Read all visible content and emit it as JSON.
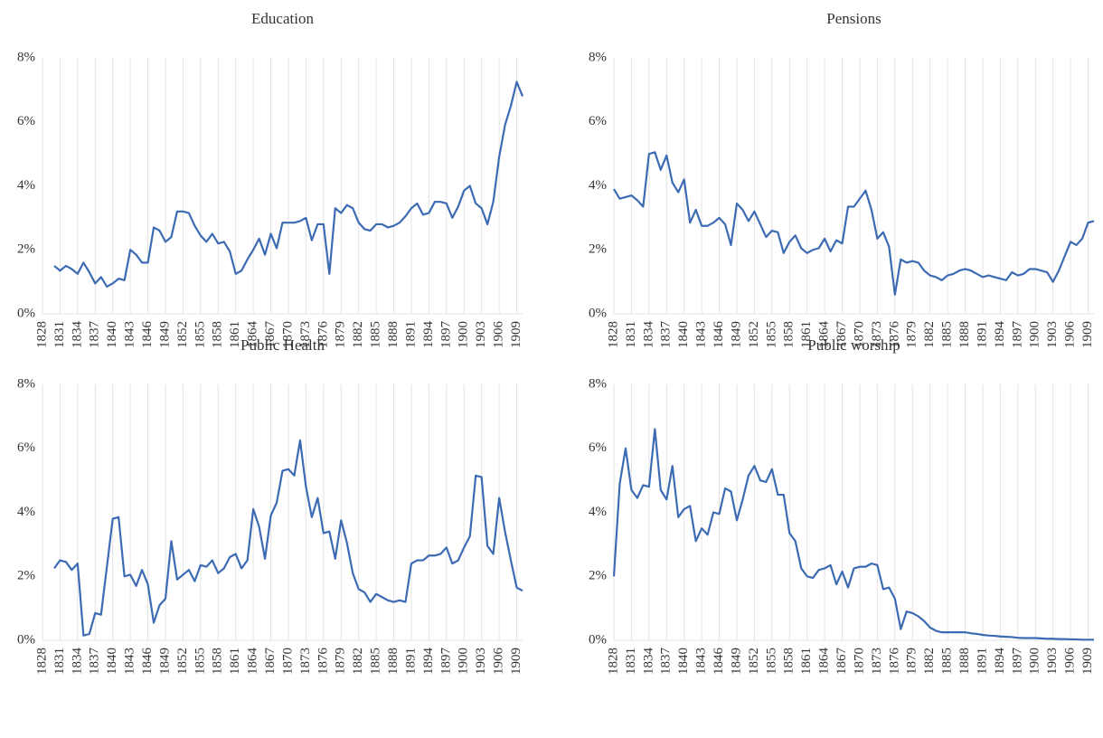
{
  "chart_data": [
    {
      "type": "line",
      "title": "Education",
      "color": "#3d6bb3",
      "grid": true,
      "x": [
        1828,
        1829,
        1830,
        1831,
        1832,
        1833,
        1834,
        1835,
        1836,
        1837,
        1838,
        1839,
        1840,
        1841,
        1842,
        1843,
        1844,
        1845,
        1846,
        1847,
        1848,
        1849,
        1850,
        1851,
        1852,
        1853,
        1854,
        1855,
        1856,
        1857,
        1858,
        1859,
        1860,
        1861,
        1862,
        1863,
        1864,
        1865,
        1866,
        1867,
        1868,
        1869,
        1870,
        1871,
        1872,
        1873,
        1874,
        1875,
        1876,
        1877,
        1878,
        1879,
        1880,
        1881,
        1882,
        1883,
        1884,
        1885,
        1886,
        1887,
        1888,
        1889,
        1890,
        1891,
        1892,
        1893,
        1894,
        1895,
        1896,
        1897,
        1898,
        1899,
        1900,
        1901,
        1902,
        1903,
        1904,
        1905,
        1906,
        1907,
        1908,
        1909,
        1910
      ],
      "values": [
        null,
        null,
        1.5,
        1.35,
        1.5,
        1.4,
        1.25,
        1.6,
        1.3,
        0.95,
        1.15,
        0.85,
        0.95,
        1.1,
        1.05,
        2.0,
        1.85,
        1.6,
        1.6,
        2.7,
        2.6,
        2.25,
        2.4,
        3.2,
        3.2,
        3.15,
        2.75,
        2.45,
        2.25,
        2.5,
        2.2,
        2.25,
        1.95,
        1.25,
        1.35,
        1.7,
        2.0,
        2.35,
        1.85,
        2.5,
        2.05,
        2.85,
        2.85,
        2.85,
        2.9,
        3.0,
        2.3,
        2.8,
        2.8,
        1.25,
        3.3,
        3.15,
        3.4,
        3.3,
        2.85,
        2.65,
        2.6,
        2.8,
        2.8,
        2.7,
        2.75,
        2.85,
        3.05,
        3.3,
        3.45,
        3.1,
        3.15,
        3.5,
        3.5,
        3.45,
        3.0,
        3.35,
        3.85,
        4.0,
        3.45,
        3.3,
        2.8,
        3.5,
        4.9,
        5.9,
        6.5,
        7.25,
        6.8
      ],
      "xlim": [
        1828,
        1910
      ],
      "xticks": [
        1828,
        1831,
        1834,
        1837,
        1840,
        1843,
        1846,
        1849,
        1852,
        1855,
        1858,
        1861,
        1864,
        1867,
        1870,
        1873,
        1876,
        1879,
        1882,
        1885,
        1888,
        1891,
        1894,
        1897,
        1900,
        1903,
        1906,
        1909
      ],
      "ylim": [
        0,
        8
      ],
      "yticks": [
        {
          "value": 0,
          "label": "0%"
        },
        {
          "value": 2,
          "label": "2%"
        },
        {
          "value": 4,
          "label": "4%"
        },
        {
          "value": 6,
          "label": "6%"
        },
        {
          "value": 8,
          "label": "8%"
        }
      ]
    },
    {
      "type": "line",
      "title": "Pensions",
      "color": "#3d6bb3",
      "grid": true,
      "x": [
        1828,
        1829,
        1830,
        1831,
        1832,
        1833,
        1834,
        1835,
        1836,
        1837,
        1838,
        1839,
        1840,
        1841,
        1842,
        1843,
        1844,
        1845,
        1846,
        1847,
        1848,
        1849,
        1850,
        1851,
        1852,
        1853,
        1854,
        1855,
        1856,
        1857,
        1858,
        1859,
        1860,
        1861,
        1862,
        1863,
        1864,
        1865,
        1866,
        1867,
        1868,
        1869,
        1870,
        1871,
        1872,
        1873,
        1874,
        1875,
        1876,
        1877,
        1878,
        1879,
        1880,
        1881,
        1882,
        1883,
        1884,
        1885,
        1886,
        1887,
        1888,
        1889,
        1890,
        1891,
        1892,
        1893,
        1894,
        1895,
        1896,
        1897,
        1898,
        1899,
        1900,
        1901,
        1902,
        1903,
        1904,
        1905,
        1906,
        1907,
        1908,
        1909,
        1910
      ],
      "values": [
        3.9,
        3.6,
        3.65,
        3.7,
        3.55,
        3.35,
        5.0,
        5.05,
        4.5,
        4.95,
        4.1,
        3.8,
        4.2,
        2.85,
        3.25,
        2.75,
        2.75,
        2.85,
        3.0,
        2.8,
        2.15,
        3.45,
        3.25,
        2.9,
        3.2,
        2.8,
        2.4,
        2.6,
        2.55,
        1.9,
        2.25,
        2.45,
        2.05,
        1.9,
        2.0,
        2.05,
        2.35,
        1.95,
        2.3,
        2.2,
        3.35,
        3.35,
        3.6,
        3.85,
        3.25,
        2.35,
        2.55,
        2.1,
        0.6,
        1.7,
        1.6,
        1.65,
        1.6,
        1.35,
        1.2,
        1.15,
        1.05,
        1.2,
        1.25,
        1.35,
        1.4,
        1.35,
        1.25,
        1.15,
        1.2,
        1.15,
        1.1,
        1.05,
        1.3,
        1.2,
        1.25,
        1.4,
        1.4,
        1.35,
        1.3,
        1.0,
        1.35,
        1.8,
        2.25,
        2.15,
        2.35,
        2.85,
        2.9
      ],
      "xlim": [
        1828,
        1910
      ],
      "xticks": [
        1828,
        1831,
        1834,
        1837,
        1840,
        1843,
        1846,
        1849,
        1852,
        1855,
        1858,
        1861,
        1864,
        1867,
        1870,
        1873,
        1876,
        1879,
        1882,
        1885,
        1888,
        1891,
        1894,
        1897,
        1900,
        1903,
        1906,
        1909
      ],
      "ylim": [
        0,
        8
      ],
      "yticks": [
        {
          "value": 0,
          "label": "0%"
        },
        {
          "value": 2,
          "label": "2%"
        },
        {
          "value": 4,
          "label": "4%"
        },
        {
          "value": 6,
          "label": "6%"
        },
        {
          "value": 8,
          "label": "8%"
        }
      ]
    },
    {
      "type": "line",
      "title": "Public Health",
      "color": "#3d6bb3",
      "grid": true,
      "x": [
        1828,
        1829,
        1830,
        1831,
        1832,
        1833,
        1834,
        1835,
        1836,
        1837,
        1838,
        1839,
        1840,
        1841,
        1842,
        1843,
        1844,
        1845,
        1846,
        1847,
        1848,
        1849,
        1850,
        1851,
        1852,
        1853,
        1854,
        1855,
        1856,
        1857,
        1858,
        1859,
        1860,
        1861,
        1862,
        1863,
        1864,
        1865,
        1866,
        1867,
        1868,
        1869,
        1870,
        1871,
        1872,
        1873,
        1874,
        1875,
        1876,
        1877,
        1878,
        1879,
        1880,
        1881,
        1882,
        1883,
        1884,
        1885,
        1886,
        1887,
        1888,
        1889,
        1890,
        1891,
        1892,
        1893,
        1894,
        1895,
        1896,
        1897,
        1898,
        1899,
        1900,
        1901,
        1902,
        1903,
        1904,
        1905,
        1906,
        1907,
        1908,
        1909,
        1910
      ],
      "values": [
        null,
        null,
        2.25,
        2.5,
        2.45,
        2.2,
        2.4,
        0.15,
        0.2,
        0.85,
        0.8,
        2.3,
        3.8,
        3.85,
        2.0,
        2.05,
        1.7,
        2.2,
        1.75,
        0.55,
        1.1,
        1.3,
        3.1,
        1.9,
        2.05,
        2.2,
        1.85,
        2.35,
        2.3,
        2.5,
        2.1,
        2.25,
        2.6,
        2.7,
        2.25,
        2.5,
        4.1,
        3.55,
        2.55,
        3.9,
        4.3,
        5.3,
        5.35,
        5.15,
        6.25,
        4.8,
        3.85,
        4.45,
        3.35,
        3.4,
        2.55,
        3.75,
        3.05,
        2.1,
        1.6,
        1.5,
        1.2,
        1.45,
        1.35,
        1.25,
        1.2,
        1.25,
        1.2,
        2.4,
        2.5,
        2.5,
        2.65,
        2.65,
        2.7,
        2.9,
        2.4,
        2.5,
        2.9,
        3.25,
        5.15,
        5.1,
        2.95,
        2.7,
        4.45,
        3.4,
        2.5,
        1.65,
        1.55
      ],
      "xlim": [
        1828,
        1910
      ],
      "xticks": [
        1828,
        1831,
        1834,
        1837,
        1840,
        1843,
        1846,
        1849,
        1852,
        1855,
        1858,
        1861,
        1864,
        1867,
        1870,
        1873,
        1876,
        1879,
        1882,
        1885,
        1888,
        1891,
        1894,
        1897,
        1900,
        1903,
        1906,
        1909
      ],
      "ylim": [
        0,
        8
      ],
      "yticks": [
        {
          "value": 0,
          "label": "0%"
        },
        {
          "value": 2,
          "label": "2%"
        },
        {
          "value": 4,
          "label": "4%"
        },
        {
          "value": 6,
          "label": "6%"
        },
        {
          "value": 8,
          "label": "8%"
        }
      ]
    },
    {
      "type": "line",
      "title": "Public worship",
      "color": "#3d6bb3",
      "grid": true,
      "x": [
        1828,
        1829,
        1830,
        1831,
        1832,
        1833,
        1834,
        1835,
        1836,
        1837,
        1838,
        1839,
        1840,
        1841,
        1842,
        1843,
        1844,
        1845,
        1846,
        1847,
        1848,
        1849,
        1850,
        1851,
        1852,
        1853,
        1854,
        1855,
        1856,
        1857,
        1858,
        1859,
        1860,
        1861,
        1862,
        1863,
        1864,
        1865,
        1866,
        1867,
        1868,
        1869,
        1870,
        1871,
        1872,
        1873,
        1874,
        1875,
        1876,
        1877,
        1878,
        1879,
        1880,
        1881,
        1882,
        1883,
        1884,
        1885,
        1886,
        1887,
        1888,
        1889,
        1890,
        1891,
        1892,
        1893,
        1894,
        1895,
        1896,
        1897,
        1898,
        1899,
        1900,
        1901,
        1902,
        1903,
        1904,
        1905,
        1906,
        1907,
        1908,
        1909,
        1910
      ],
      "values": [
        2.0,
        4.9,
        6.0,
        4.7,
        4.45,
        4.85,
        4.8,
        6.6,
        4.7,
        4.4,
        5.45,
        3.85,
        4.1,
        4.2,
        3.1,
        3.5,
        3.3,
        4.0,
        3.95,
        4.75,
        4.65,
        3.75,
        4.4,
        5.15,
        5.45,
        5.0,
        4.95,
        5.35,
        4.55,
        4.55,
        3.35,
        3.1,
        2.25,
        2.0,
        1.95,
        2.2,
        2.25,
        2.35,
        1.75,
        2.15,
        1.65,
        2.25,
        2.3,
        2.3,
        2.4,
        2.35,
        1.6,
        1.65,
        1.3,
        0.35,
        0.9,
        0.85,
        0.75,
        0.6,
        0.4,
        0.3,
        0.25,
        0.25,
        0.25,
        0.25,
        0.25,
        0.22,
        0.2,
        0.17,
        0.15,
        0.14,
        0.12,
        0.11,
        0.1,
        0.08,
        0.07,
        0.07,
        0.07,
        0.06,
        0.05,
        0.05,
        0.04,
        0.04,
        0.03,
        0.03,
        0.02,
        0.02,
        0.02
      ],
      "xlim": [
        1828,
        1910
      ],
      "xticks": [
        1828,
        1831,
        1834,
        1837,
        1840,
        1843,
        1846,
        1849,
        1852,
        1855,
        1858,
        1861,
        1864,
        1867,
        1870,
        1873,
        1876,
        1879,
        1882,
        1885,
        1888,
        1891,
        1894,
        1897,
        1900,
        1903,
        1906,
        1909
      ],
      "ylim": [
        0,
        8
      ],
      "yticks": [
        {
          "value": 0,
          "label": "0%"
        },
        {
          "value": 2,
          "label": "2%"
        },
        {
          "value": 4,
          "label": "4%"
        },
        {
          "value": 6,
          "label": "6%"
        },
        {
          "value": 8,
          "label": "8%"
        }
      ]
    }
  ]
}
